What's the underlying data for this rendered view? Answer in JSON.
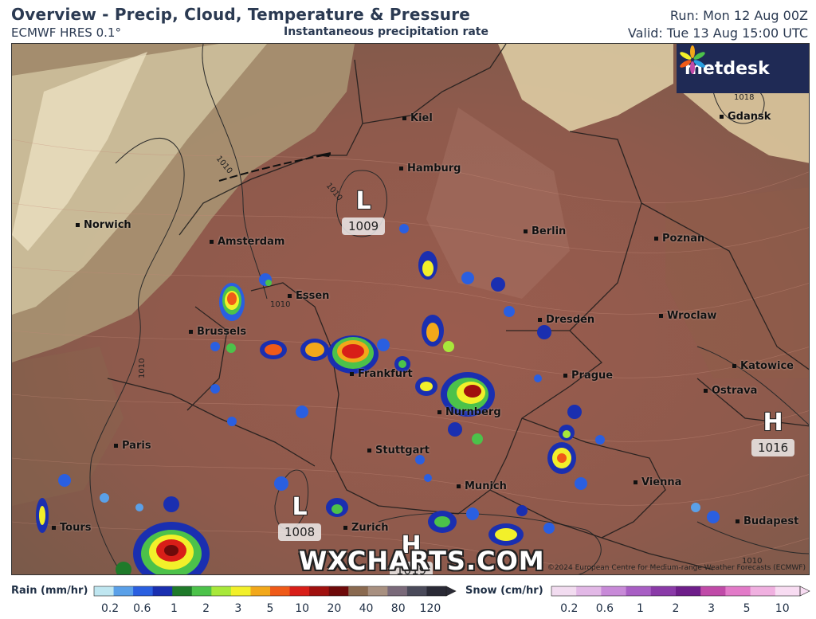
{
  "header": {
    "title": "Overview - Precip, Cloud, Temperature & Pressure",
    "model": "ECMWF HRES 0.1°",
    "product": "Instantaneous precipitation rate",
    "run": "Run: Mon 12 Aug 00Z",
    "valid": "Valid: Tue 13 Aug 15:00 UTC"
  },
  "logo": {
    "text": "metdesk",
    "icon": "flower-icon"
  },
  "cities": [
    {
      "id": "kiel",
      "name": "Kiel"
    },
    {
      "id": "gdansk",
      "name": "Gdansk"
    },
    {
      "id": "hamburg",
      "name": "Hamburg"
    },
    {
      "id": "norwich",
      "name": "Norwich"
    },
    {
      "id": "amsterdam",
      "name": "Amsterdam"
    },
    {
      "id": "berlin",
      "name": "Berlin"
    },
    {
      "id": "poznan",
      "name": "Poznan"
    },
    {
      "id": "essen",
      "name": "Essen"
    },
    {
      "id": "brussels",
      "name": "Brussels"
    },
    {
      "id": "dresden",
      "name": "Dresden"
    },
    {
      "id": "wroclaw",
      "name": "Wroclaw"
    },
    {
      "id": "frankfurt",
      "name": "Frankfurt"
    },
    {
      "id": "prague",
      "name": "Prague"
    },
    {
      "id": "katowice",
      "name": "Katowice"
    },
    {
      "id": "ostrava",
      "name": "Ostrava"
    },
    {
      "id": "nurnberg",
      "name": "Nurnberg"
    },
    {
      "id": "paris",
      "name": "Paris"
    },
    {
      "id": "stuttgart",
      "name": "Stuttgart"
    },
    {
      "id": "munich",
      "name": "Munich"
    },
    {
      "id": "vienna",
      "name": "Vienna"
    },
    {
      "id": "tours",
      "name": "Tours"
    },
    {
      "id": "zurich",
      "name": "Zurich"
    },
    {
      "id": "budapest",
      "name": "Budapest"
    }
  ],
  "pressure_systems": [
    {
      "id": "low-north",
      "symbol": "L",
      "value": "1009"
    },
    {
      "id": "low-south",
      "symbol": "L",
      "value": "1008"
    },
    {
      "id": "high-east",
      "symbol": "H",
      "value": "1016"
    },
    {
      "id": "high-south",
      "symbol": "H",
      "value": "1019"
    }
  ],
  "isobar_labels": [
    "1010",
    "1010",
    "1010",
    "1010",
    "1018",
    "1010"
  ],
  "watermark": "WXCHARTS.COM",
  "copyright": "©2024 European Centre for Medium-range Weather Forecasts (ECMWF)",
  "legend": {
    "rain_title": "Rain (mm/hr)",
    "rain_ticks": [
      "0.2",
      "0.6",
      "1",
      "2",
      "3",
      "5",
      "10",
      "20",
      "40",
      "80",
      "120"
    ],
    "rain_colors": [
      "#bfe6f0",
      "#5aa0e8",
      "#2a5fe0",
      "#1a2fb0",
      "#1f7a2a",
      "#4cc24a",
      "#a8e83a",
      "#f2f02a",
      "#f2a81a",
      "#ef5a18",
      "#d81e18",
      "#a0100e",
      "#6e0a0a",
      "#8a6a50",
      "#a89080",
      "#7a6a7a",
      "#4a4a5a",
      "#2a2a36"
    ],
    "snow_title": "Snow (cm/hr)",
    "snow_ticks": [
      "0.2",
      "0.6",
      "1",
      "2",
      "3",
      "5",
      "10"
    ],
    "snow_colors": [
      "#f2dcf0",
      "#e2b8e6",
      "#c88ad8",
      "#a85ec4",
      "#8a3aa8",
      "#6e1e8a",
      "#c04aa8",
      "#e27ac8",
      "#f0b0e0",
      "#f8dcf2"
    ]
  }
}
